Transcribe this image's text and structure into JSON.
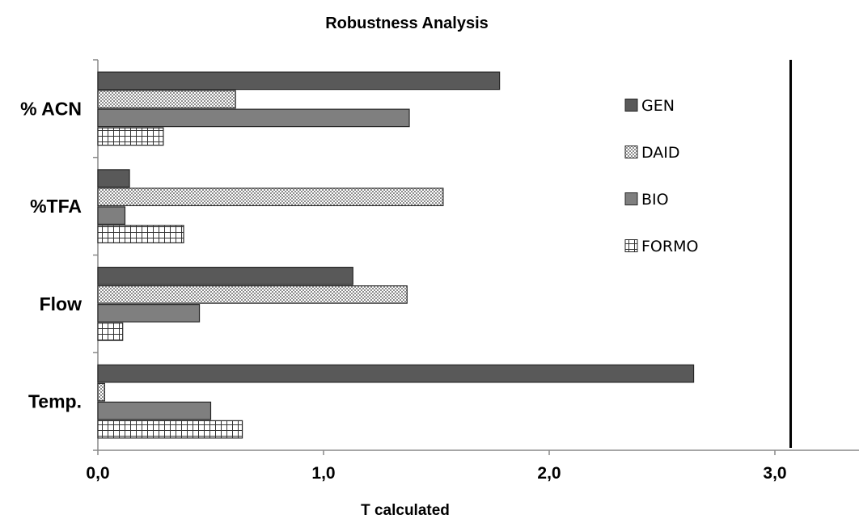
{
  "chart_data": {
    "type": "bar",
    "orientation": "horizontal",
    "title": "Robustness Analysis",
    "xlabel": "T calculated",
    "ylabel": "",
    "categories": [
      "% ACN",
      "%TFA",
      "Flow",
      "Temp."
    ],
    "series": [
      {
        "name": "GEN",
        "values": [
          1.78,
          0.14,
          1.13,
          2.64
        ],
        "pattern": "solid-dark",
        "color": "#595959"
      },
      {
        "name": "DAID",
        "values": [
          0.61,
          1.53,
          1.37,
          0.03
        ],
        "pattern": "fine-checker",
        "color": "#d9d9d9"
      },
      {
        "name": "BIO",
        "values": [
          1.38,
          0.12,
          0.45,
          0.5
        ],
        "pattern": "solid-mid",
        "color": "#7f7f7f"
      },
      {
        "name": "FORMO",
        "values": [
          0.29,
          0.38,
          0.11,
          0.64
        ],
        "pattern": "grid",
        "color": "#ffffff"
      }
    ],
    "xlim": [
      0,
      3.5
    ],
    "xticks": [
      0,
      1,
      2,
      3
    ],
    "xtick_labels": [
      "0,0",
      "1,0",
      "2,0",
      "3,0"
    ],
    "reference_line": {
      "x": 3.07
    },
    "legend": "inside-right",
    "grid": false
  }
}
